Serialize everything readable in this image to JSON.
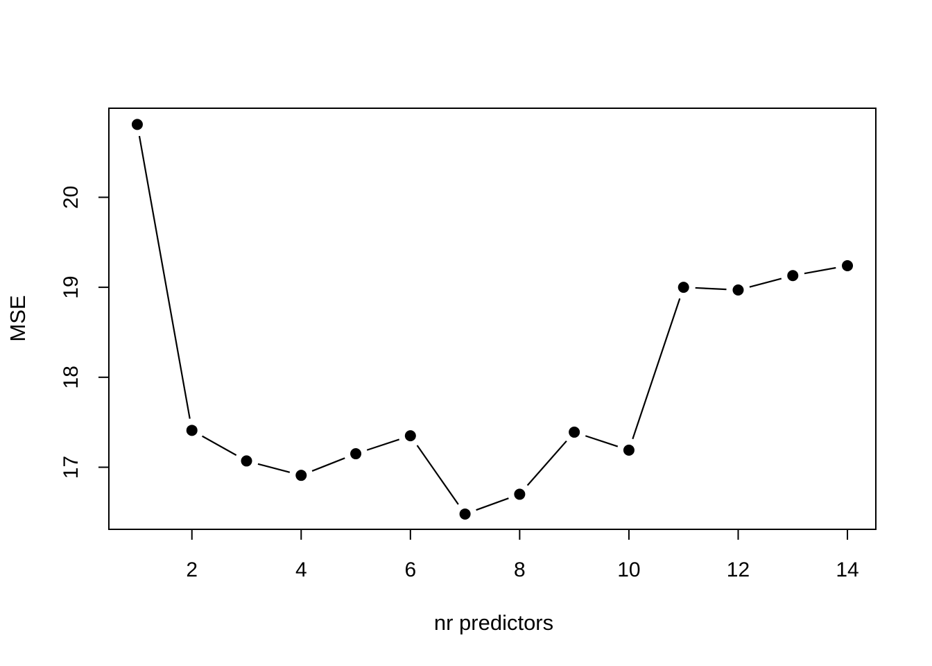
{
  "chart_data": {
    "type": "line",
    "title": "",
    "xlabel": "nr predictors",
    "ylabel": "MSE",
    "x": [
      1,
      2,
      3,
      4,
      5,
      6,
      7,
      8,
      9,
      10,
      11,
      12,
      13,
      14
    ],
    "y": [
      20.81,
      17.41,
      17.07,
      16.91,
      17.15,
      17.35,
      16.48,
      16.7,
      17.39,
      17.19,
      19.0,
      18.97,
      19.13,
      19.24
    ],
    "x_ticks": [
      2,
      4,
      6,
      8,
      10,
      12,
      14
    ],
    "y_ticks": [
      17,
      18,
      19,
      20
    ],
    "xlim": [
      0.48,
      14.52
    ],
    "ylim": [
      16.31,
      20.99
    ],
    "marker": "filled-circle",
    "line_style": "segments-with-gaps",
    "line_color": "#000000",
    "point_color": "#000000",
    "axis_color": "#000000",
    "background_color": "#ffffff",
    "grid": "off",
    "legend": "none"
  }
}
